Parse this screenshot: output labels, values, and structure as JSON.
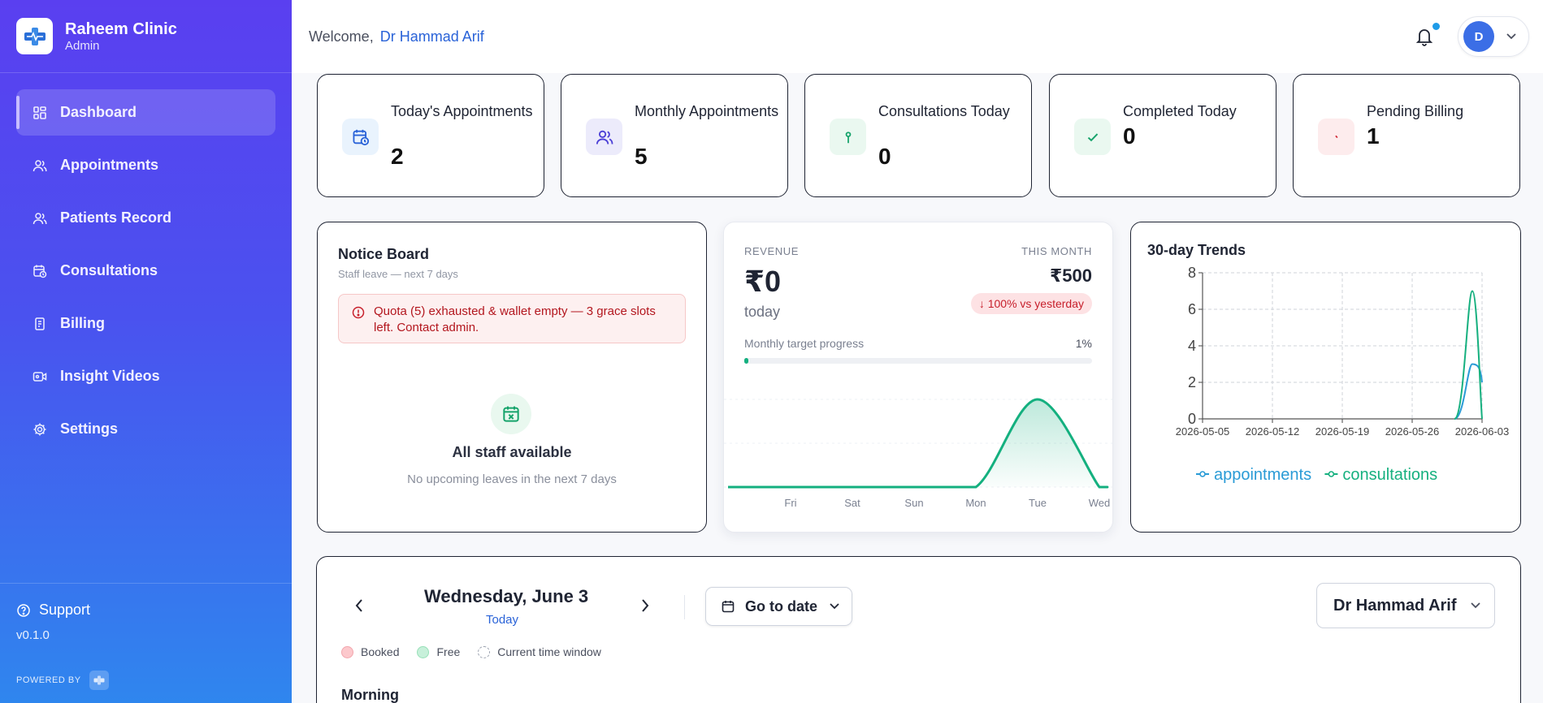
{
  "sidebar": {
    "brand_name": "Raheem Clinic",
    "brand_role": "Admin",
    "items": [
      {
        "label": "Dashboard",
        "icon": "grid-icon",
        "active": true
      },
      {
        "label": "Appointments",
        "icon": "users-icon"
      },
      {
        "label": "Patients Record",
        "icon": "users-icon"
      },
      {
        "label": "Consultations",
        "icon": "calendar-clock-icon"
      },
      {
        "label": "Billing",
        "icon": "receipt-icon"
      },
      {
        "label": "Insight Videos",
        "icon": "video-icon"
      },
      {
        "label": "Settings",
        "icon": "gear-icon"
      }
    ],
    "support_label": "Support",
    "version": "v0.1.0",
    "powered_by": "POWERED BY"
  },
  "header": {
    "welcome": "Welcome,",
    "doctor_name": "Dr Hammad Arif",
    "avatar_initial": "D"
  },
  "stats": [
    {
      "label": "Today's Appointments",
      "value": "2",
      "icon": "calendar-clock-icon",
      "color": "#2a63d8"
    },
    {
      "label": "Monthly Appointments",
      "value": "5",
      "icon": "users-icon",
      "color": "#4b3fd6"
    },
    {
      "label": "Consultations Today",
      "value": "0",
      "icon": "stethoscope-icon",
      "color": "#16a36b"
    },
    {
      "label": "Completed Today",
      "value": "0",
      "icon": "check-icon",
      "color": "#16a36b"
    },
    {
      "label": "Pending Billing",
      "value": "1",
      "icon": "clock-icon",
      "color": "#d22b3a"
    }
  ],
  "notice_board": {
    "title": "Notice Board",
    "subtitle": "Staff leave — next 7 days",
    "alert": "Quota (5) exhausted & wallet empty — 3 grace slots left. Contact admin.",
    "empty_title": "All staff available",
    "empty_sub": "No upcoming leaves in the next 7 days"
  },
  "revenue": {
    "label": "REVENUE",
    "today_value": "₹0",
    "today_label": "today",
    "month_label": "THIS MONTH",
    "month_value": "₹500",
    "change": "↓ 100% vs yesterday",
    "progress_label": "Monthly target progress",
    "progress_text": "1%",
    "progress": 0.01,
    "chart_days": [
      "Fri",
      "Sat",
      "Sun",
      "Mon",
      "Tue",
      "Wed"
    ],
    "chart_values": [
      0,
      0,
      0,
      0,
      500,
      0
    ]
  },
  "trends": {
    "title": "30-day Trends",
    "chart_data": {
      "type": "line",
      "x": [
        "2026-05-05",
        "2026-05-12",
        "2026-05-19",
        "2026-05-26",
        "2026-06-03"
      ],
      "ylim": [
        0,
        8
      ],
      "yticks": [
        "0",
        "2",
        "4",
        "6",
        "8"
      ],
      "grid": true,
      "legend_position": "bottom",
      "series": [
        {
          "name": "appointments",
          "color": "#2a9bd6",
          "last_point": 3,
          "end_value": 2
        },
        {
          "name": "consultations",
          "color": "#16b07f",
          "last_point": 7,
          "end_value": 0
        }
      ]
    }
  },
  "schedule": {
    "date": "Wednesday, June 3",
    "today_label": "Today",
    "goto_label": "Go to date",
    "doctor_select": "Dr Hammad Arif",
    "legend": [
      {
        "label": "Booked",
        "color": "#fcc8cc"
      },
      {
        "label": "Free",
        "color": "#c7f0da"
      },
      {
        "label": "Current time window",
        "color": "dashed"
      }
    ],
    "section": "Morning"
  }
}
